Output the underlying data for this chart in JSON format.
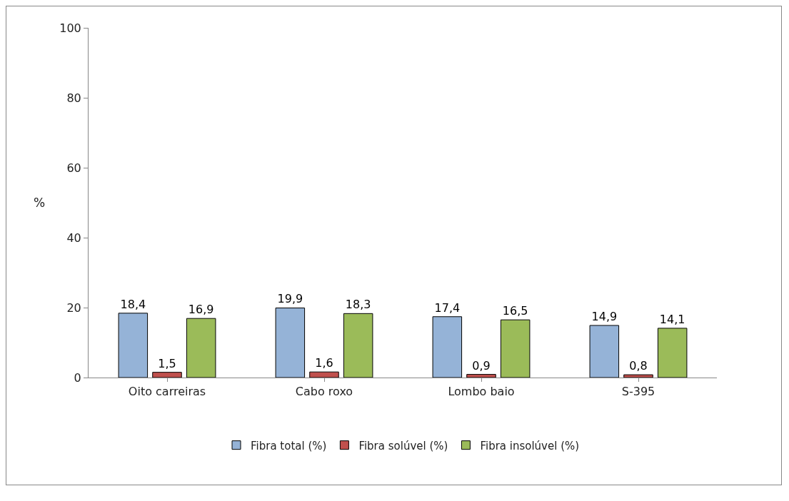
{
  "chart_data": {
    "type": "bar",
    "ylabel": "%",
    "categories": [
      "Oito carreiras",
      "Cabo roxo",
      "Lombo baio",
      "S-395"
    ],
    "series": [
      {
        "name": "Fibra total (%)",
        "color": "#95b3d7",
        "values": [
          18.4,
          19.9,
          17.4,
          14.9
        ],
        "value_labels": [
          "18,4",
          "19,9",
          "17,4",
          "14,9"
        ]
      },
      {
        "name": "Fibra solúvel (%)",
        "color": "#c0504d",
        "values": [
          1.5,
          1.6,
          0.9,
          0.8
        ],
        "value_labels": [
          "1,5",
          "1,6",
          "0,9",
          "0,8"
        ]
      },
      {
        "name": "Fibra insolúvel (%)",
        "color": "#9bbb59",
        "values": [
          16.9,
          18.3,
          16.5,
          14.1
        ],
        "value_labels": [
          "16,9",
          "18,3",
          "16,5",
          "14,1"
        ]
      }
    ],
    "ylim": [
      0,
      100
    ],
    "yticks": [
      0,
      20,
      40,
      60,
      80,
      100
    ],
    "grid": false,
    "legend": "bottom"
  }
}
